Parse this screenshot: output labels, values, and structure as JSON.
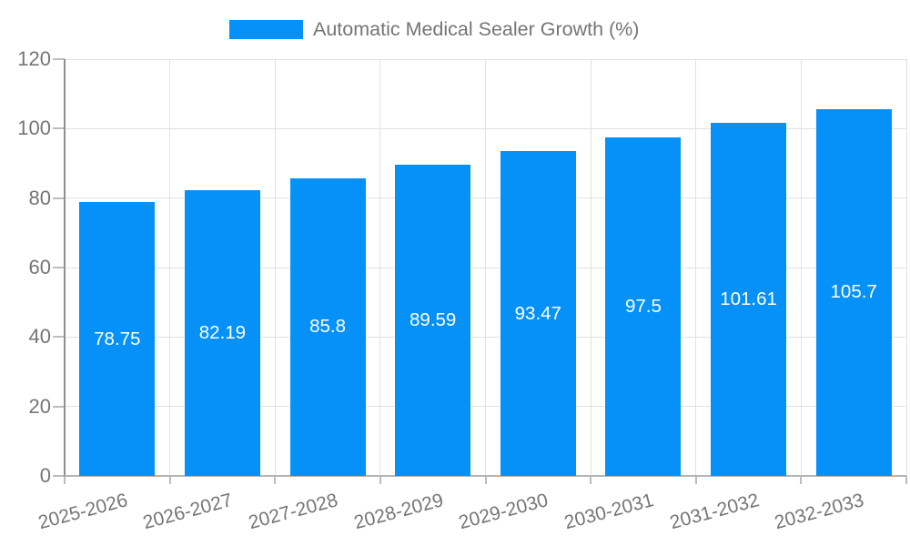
{
  "legend": {
    "label": "Automatic Medical Sealer Growth (%)"
  },
  "colors": {
    "bar": "#0591f8",
    "legend_text": "#757575",
    "tick_text": "#757575",
    "value_text": "#ffffff",
    "grid": "#e2e2e2",
    "axis": "#8f8f8f",
    "background": "#ffffff"
  },
  "chart_data": {
    "type": "bar",
    "title": "Automatic Medical Sealer Growth (%)",
    "categories": [
      "2025-2026",
      "2026-2027",
      "2027-2028",
      "2028-2029",
      "2029-2030",
      "2030-2031",
      "2031-2032",
      "2032-2033"
    ],
    "values": [
      78.75,
      82.19,
      85.8,
      89.59,
      93.47,
      97.5,
      101.61,
      105.7
    ],
    "value_labels": [
      "78.75",
      "82.19",
      "85.8",
      "89.59",
      "93.47",
      "97.5",
      "101.61",
      "105.7"
    ],
    "xlabel": "",
    "ylabel": "",
    "ylim": [
      0,
      120
    ],
    "yticks": [
      0,
      20,
      40,
      60,
      80,
      100,
      120
    ],
    "grid": true,
    "legend_position": "top-center",
    "bar_labels_inside": true
  }
}
